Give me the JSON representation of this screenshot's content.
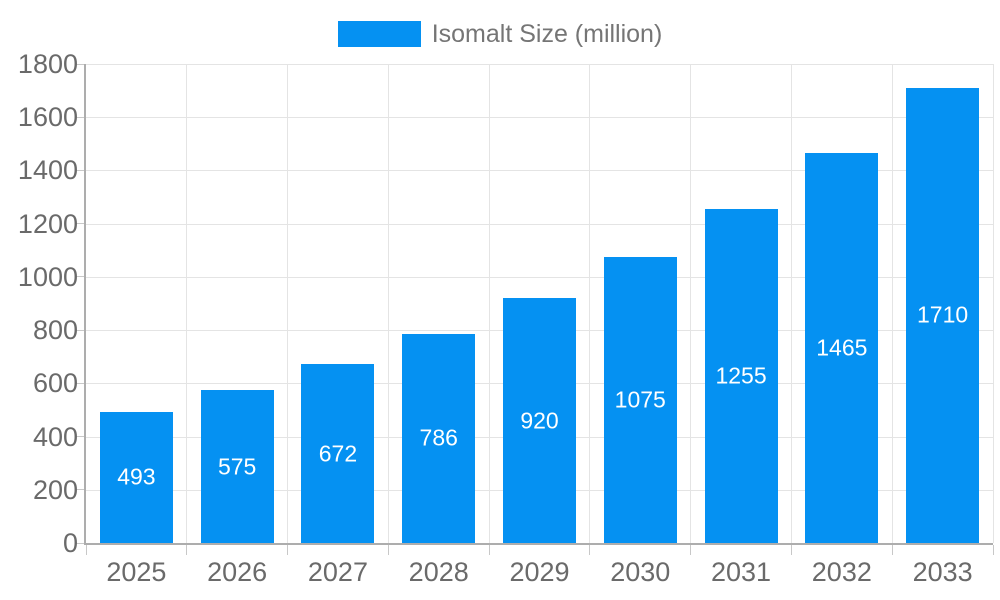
{
  "chart_data": {
    "type": "bar",
    "title": "",
    "legend": "Isomalt Size (million)",
    "legend_position": "top-center",
    "categories": [
      "2025",
      "2026",
      "2027",
      "2028",
      "2029",
      "2030",
      "2031",
      "2032",
      "2033"
    ],
    "values": [
      493,
      575,
      672,
      786,
      920,
      1075,
      1255,
      1465,
      1710
    ],
    "xlabel": "",
    "ylabel": "",
    "ylim": [
      0,
      1800
    ],
    "ytick_step": 200,
    "grid": true,
    "value_labels": "inside-center",
    "colors": {
      "bar": "#0591f2",
      "value_label": "#ffffff",
      "axis_text": "#6a6a6a",
      "legend_text": "#757575",
      "gridline": "#e4e4e4",
      "tick": "#c8c8c8",
      "axis_line": "#adadad",
      "background": "#ffffff"
    }
  }
}
